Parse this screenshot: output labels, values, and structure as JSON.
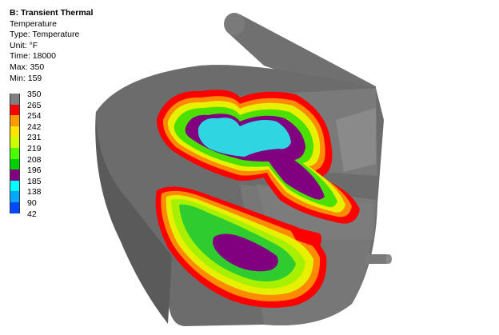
{
  "analysis": {
    "title": "B: Transient Thermal",
    "result": "Temperature",
    "type_line": "Type: Temperature",
    "unit_line": "Unit: °F",
    "time_line": "Time: 18000",
    "max_line": "Max: 350",
    "min_line": "Min: 159"
  },
  "legend": {
    "labels": [
      "350",
      "265",
      "254",
      "242",
      "231",
      "219",
      "208",
      "196",
      "185",
      "138",
      "90",
      "42"
    ],
    "colors": [
      "#808080",
      "#FF0000",
      "#FF9A00",
      "#FFE400",
      "#CCFF00",
      "#4CFF00",
      "#00D200",
      "#800080",
      "#00FFFF",
      "#00A8FF",
      "#0048FF",
      "#0000B4"
    ]
  },
  "model": {
    "body_color": "#6E6E6E",
    "body_dark": "#565656",
    "body_light": "#8A8A8A",
    "band_colors": {
      "red": "#FF0000",
      "orange": "#FF8C00",
      "yellow": "#E6F000",
      "lime": "#A6F000",
      "green": "#2ECC2E",
      "purple": "#800080",
      "cyan": "#2FD5E0"
    }
  }
}
